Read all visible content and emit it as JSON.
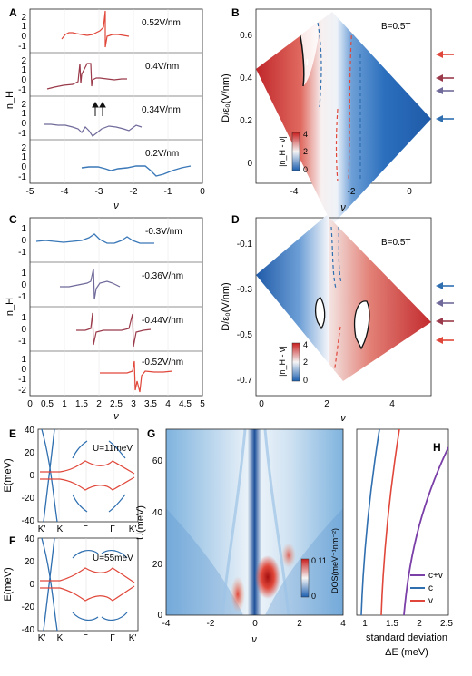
{
  "panels": {
    "A": {
      "letter": "A",
      "ylabel": "n_H",
      "xlabel": "ν",
      "x_ticks": [
        "-5",
        "-4",
        "-3",
        "-2",
        "-1",
        "0"
      ],
      "sub_ticks": [
        "2",
        "1",
        "0",
        "-1"
      ],
      "fields": [
        "0.52V/nm",
        "0.4V/nm",
        "0.34V/nm",
        "0.2V/nm"
      ],
      "colors": [
        "#e0473a",
        "#9a3a4a",
        "#6f6a9a",
        "#3a78b8"
      ]
    },
    "B": {
      "letter": "B",
      "title": "B=0.5T",
      "ylabel": "D/ε₀(V/nm)",
      "xlabel": "ν",
      "y_ticks": [
        "0.6",
        "0.4",
        "0.2",
        "0"
      ],
      "x_ticks": [
        "-4",
        "-2",
        "0"
      ],
      "region_label": "I",
      "cbar_label": "|n_H - ν|",
      "cbar_ticks": [
        "4",
        "2",
        "0"
      ]
    },
    "C": {
      "letter": "C",
      "ylabel": "n_H",
      "xlabel": "ν",
      "x_ticks": [
        "0",
        "0.5",
        "1",
        "1.5",
        "2",
        "2.5",
        "3",
        "3.5",
        "4",
        "4.5",
        "5"
      ],
      "sub_ticks": [
        "1",
        "0",
        "-1",
        "-2"
      ],
      "fields": [
        "-0.3V/nm",
        "-0.36V/nm",
        "-0.44V/nm",
        "-0.52V/nm"
      ],
      "colors": [
        "#3a78b8",
        "#6f6a9a",
        "#9a3a4a",
        "#e0473a"
      ]
    },
    "D": {
      "letter": "D",
      "title": "B=0.5T",
      "ylabel": "D/ε₀(V/nm)",
      "xlabel": "ν",
      "y_ticks": [
        "-0.1",
        "-0.3",
        "-0.5",
        "-0.7"
      ],
      "x_ticks": [
        "0",
        "2",
        "4"
      ],
      "cbar_label": "|n_H - ν|",
      "cbar_ticks": [
        "4",
        "2",
        "0"
      ]
    },
    "E": {
      "letter": "E",
      "ylabel": "E(meV)",
      "y_ticks": [
        "40",
        "20",
        "0",
        "-20",
        "-40"
      ],
      "x_ticks": [
        "K'",
        "K",
        "Γ",
        "Γ",
        "K'"
      ],
      "label": "U=11meV"
    },
    "F": {
      "letter": "F",
      "ylabel": "E(meV)",
      "y_ticks": [
        "40",
        "20",
        "0",
        "-20",
        "-40"
      ],
      "x_ticks": [
        "K'",
        "K",
        "Γ",
        "Γ",
        "K'"
      ],
      "label": "U=55meV"
    },
    "G": {
      "letter": "G",
      "ylabel": "U(meV)",
      "xlabel": "ν",
      "y_ticks": [
        "60",
        "40",
        "20",
        "0"
      ],
      "x_ticks": [
        "-4",
        "-2",
        "0",
        "2",
        "4"
      ],
      "cbar_label": "DOS(meV⁻¹nm⁻²)",
      "cbar_ticks": [
        "0.11",
        "0"
      ]
    },
    "H": {
      "letter": "H",
      "xlabel_line1": "standard deviation",
      "xlabel_line2": "ΔE (meV)",
      "x_ticks": [
        "1",
        "1.5",
        "2",
        "2.5"
      ],
      "legend": [
        "c+v",
        "c",
        "v"
      ],
      "legend_colors": [
        "#7b3fa8",
        "#2f6fb0",
        "#e0473a"
      ]
    }
  },
  "arrow_colors_B": [
    "#e0473a",
    "#9a3a4a",
    "#6f6a9a",
    "#2f6fb0"
  ],
  "arrow_colors_D": [
    "#2f6fb0",
    "#6f6a9a",
    "#9a3a4a",
    "#e0473a"
  ]
}
